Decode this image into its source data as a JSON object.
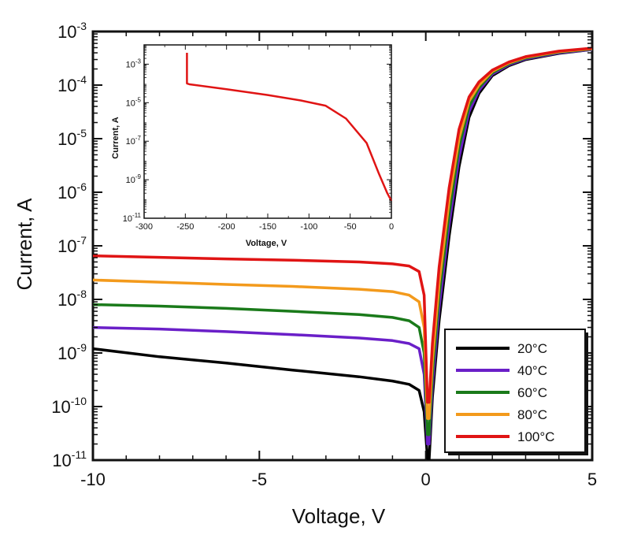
{
  "chart_data": [
    {
      "type": "line",
      "name": "main",
      "xlabel": "Voltage, V",
      "ylabel": "Current, A",
      "xlim": [
        -10,
        5
      ],
      "ylim": [
        1e-11,
        0.001
      ],
      "y_scale": "log",
      "x_ticks": [
        -10,
        -5,
        0,
        5
      ],
      "y_ticks": [
        {
          "value": 1e-11,
          "base": "10",
          "exp": "-11"
        },
        {
          "value": 1e-10,
          "base": "10",
          "exp": "-10"
        },
        {
          "value": 1e-09,
          "base": "10",
          "exp": "-9"
        },
        {
          "value": 1e-08,
          "base": "10",
          "exp": "-8"
        },
        {
          "value": 1e-07,
          "base": "10",
          "exp": "-7"
        },
        {
          "value": 1e-06,
          "base": "10",
          "exp": "-6"
        },
        {
          "value": 1e-05,
          "base": "10",
          "exp": "-5"
        },
        {
          "value": 0.0001,
          "base": "10",
          "exp": "-4"
        },
        {
          "value": 0.001,
          "base": "10",
          "exp": "-3"
        }
      ],
      "legend_position": "bottom-right",
      "series": [
        {
          "name": "20°C",
          "color": "#000000",
          "x": [
            -10,
            -8,
            -6,
            -4,
            -2,
            -1,
            -0.5,
            -0.2,
            -0.05,
            0.05,
            0.1,
            0.2,
            0.4,
            0.7,
            1.0,
            1.3,
            1.6,
            2.0,
            2.5,
            3.0,
            4.0,
            5.0
          ],
          "y": [
            1.2e-09,
            8.5e-10,
            6.5e-10,
            4.8e-10,
            3.6e-10,
            3e-10,
            2.6e-10,
            2e-10,
            8e-11,
            1.1e-11,
            1e-11,
            1.5e-10,
            4e-09,
            1.5e-07,
            3e-06,
            2.5e-05,
            7e-05,
            0.00015,
            0.00023,
            0.0003,
            0.00039,
            0.00046
          ]
        },
        {
          "name": "40°C",
          "color": "#6a1fc8",
          "x": [
            -10,
            -8,
            -6,
            -4,
            -2,
            -1,
            -0.5,
            -0.2,
            -0.05,
            0.05,
            0.1,
            0.2,
            0.4,
            0.7,
            1.0,
            1.3,
            1.6,
            2.0,
            2.5,
            3.0,
            4.0,
            5.0
          ],
          "y": [
            3e-09,
            2.8e-09,
            2.5e-09,
            2.2e-09,
            1.9e-09,
            1.7e-09,
            1.5e-09,
            1.2e-09,
            4e-10,
            2e-11,
            2e-11,
            2.5e-10,
            7e-09,
            2.5e-07,
            4.5e-06,
            3.2e-05,
            8e-05,
            0.00016,
            0.00024,
            0.00031,
            0.0004,
            0.00046
          ]
        },
        {
          "name": "60°C",
          "color": "#1a7a1a",
          "x": [
            -10,
            -8,
            -6,
            -4,
            -2,
            -1,
            -0.5,
            -0.2,
            -0.05,
            0.05,
            0.1,
            0.2,
            0.4,
            0.7,
            1.0,
            1.3,
            1.6,
            2.0,
            2.5,
            3.0,
            4.0,
            5.0
          ],
          "y": [
            8e-09,
            7.5e-09,
            6.8e-09,
            6e-09,
            5.2e-09,
            4.6e-09,
            4e-09,
            3e-09,
            1e-09,
            3e-11,
            3e-11,
            4e-10,
            1.2e-08,
            4e-07,
            7e-06,
            4e-05,
            9e-05,
            0.00017,
            0.00025,
            0.00032,
            0.00041,
            0.00047
          ]
        },
        {
          "name": "80°C",
          "color": "#f39a1c",
          "x": [
            -10,
            -8,
            -6,
            -4,
            -2,
            -1,
            -0.5,
            -0.2,
            -0.05,
            0.05,
            0.1,
            0.2,
            0.4,
            0.7,
            1.0,
            1.3,
            1.6,
            2.0,
            2.5,
            3.0,
            4.0,
            5.0
          ],
          "y": [
            2.3e-08,
            2.1e-08,
            1.9e-08,
            1.75e-08,
            1.55e-08,
            1.4e-08,
            1.2e-08,
            9e-09,
            3e-09,
            6e-11,
            6e-11,
            7e-10,
            2e-08,
            7e-07,
            1e-05,
            5e-05,
            0.0001,
            0.00018,
            0.00026,
            0.00033,
            0.00042,
            0.00048
          ]
        },
        {
          "name": "100°C",
          "color": "#e01414",
          "x": [
            -10,
            -8,
            -6,
            -4,
            -2,
            -1,
            -0.5,
            -0.2,
            -0.05,
            0.05,
            0.1,
            0.2,
            0.4,
            0.7,
            1.0,
            1.3,
            1.6,
            2.0,
            2.5,
            3.0,
            4.0,
            5.0
          ],
          "y": [
            6.5e-08,
            6.1e-08,
            5.7e-08,
            5.4e-08,
            5e-08,
            4.6e-08,
            4.2e-08,
            3.3e-08,
            1.2e-08,
            1.2e-10,
            1.2e-10,
            1.5e-09,
            4e-08,
            1.2e-06,
            1.5e-05,
            6e-05,
            0.000115,
            0.00019,
            0.00027,
            0.00034,
            0.00043,
            0.00049
          ]
        }
      ]
    },
    {
      "type": "line",
      "name": "inset",
      "xlabel": "Voltage, V",
      "ylabel": "Current, A",
      "xlim": [
        -300,
        0
      ],
      "ylim": [
        1e-11,
        0.01
      ],
      "y_scale": "log",
      "x_ticks": [
        -300,
        -250,
        -200,
        -150,
        -100,
        -50,
        0
      ],
      "y_ticks": [
        {
          "value": 1e-11,
          "base": "10",
          "exp": "-11"
        },
        {
          "value": 1e-09,
          "base": "10",
          "exp": "-9"
        },
        {
          "value": 1e-07,
          "base": "10",
          "exp": "-7"
        },
        {
          "value": 1e-05,
          "base": "10",
          "exp": "-5"
        },
        {
          "value": 0.001,
          "base": "10",
          "exp": "-3"
        }
      ],
      "series": [
        {
          "color": "#e01414",
          "x": [
            -248,
            -248,
            -245,
            -200,
            -150,
            -110,
            -80,
            -55,
            -30,
            -15,
            -5,
            0
          ],
          "y": [
            0.005,
            0.0001,
            9e-05,
            5e-05,
            2.5e-05,
            1.3e-05,
            7e-06,
            1.5e-06,
            8e-08,
            2e-09,
            2e-10,
            8e-11
          ]
        }
      ]
    }
  ]
}
